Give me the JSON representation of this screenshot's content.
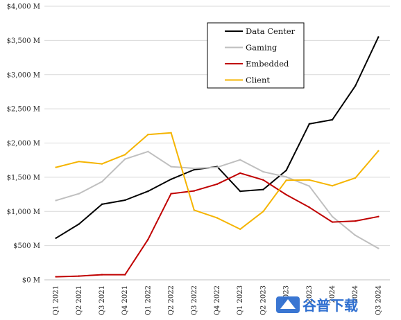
{
  "chart_data": {
    "type": "line",
    "categories": [
      "Q1 2021",
      "Q2 2021",
      "Q3 2021",
      "Q4 2021",
      "Q1 2022",
      "Q2 2022",
      "Q3 2022",
      "Q4 2022",
      "Q1 2023",
      "Q2 2023",
      "Q3 2023",
      "Q4 2023",
      "Q1 2024",
      "Q2 2024",
      "Q3 2024"
    ],
    "x_tick_labels": [
      "Q1 2021",
      "Q2 2021",
      "Q3 2021",
      "Q4 2021",
      "Q1 2022",
      "Q2 2022",
      "Q3 2022",
      "Q4 2022",
      "Q1 2023",
      "Q2 2023",
      "2023",
      "2023",
      "2024",
      "2024",
      "Q3 2024"
    ],
    "ylim": [
      0,
      4000
    ],
    "y_ticks": [
      0,
      500,
      1000,
      1500,
      2000,
      2500,
      3000,
      3500,
      4000
    ],
    "y_tick_labels": [
      "$0 M",
      "$500 M",
      "$1,000 M",
      "$1,500 M",
      "$2,000 M",
      "$2,500 M",
      "$3,000 M",
      "$3,500 M",
      "$4,000 M"
    ],
    "grid": "horizontal",
    "legend_position": "top-right",
    "series": [
      {
        "name": "Data Center",
        "color": "#000000",
        "values": [
          610,
          815,
          1105,
          1165,
          1295,
          1470,
          1610,
          1655,
          1295,
          1320,
          1600,
          2280,
          2340,
          2835,
          3550
        ]
      },
      {
        "name": "Gaming",
        "color": "#bfbfbf",
        "values": [
          1160,
          1260,
          1435,
          1765,
          1875,
          1655,
          1630,
          1645,
          1755,
          1580,
          1505,
          1370,
          925,
          650,
          460
        ]
      },
      {
        "name": "Embedded",
        "color": "#c00000",
        "values": [
          45,
          55,
          75,
          75,
          590,
          1260,
          1300,
          1400,
          1560,
          1460,
          1245,
          1060,
          845,
          860,
          925
        ]
      },
      {
        "name": "Client",
        "color": "#f5b400",
        "values": [
          1645,
          1730,
          1695,
          1830,
          2125,
          2150,
          1020,
          905,
          740,
          1000,
          1455,
          1460,
          1375,
          1490,
          1885
        ]
      }
    ]
  },
  "watermark": {
    "text": "谷普下载",
    "color": "#2f6fd0"
  }
}
